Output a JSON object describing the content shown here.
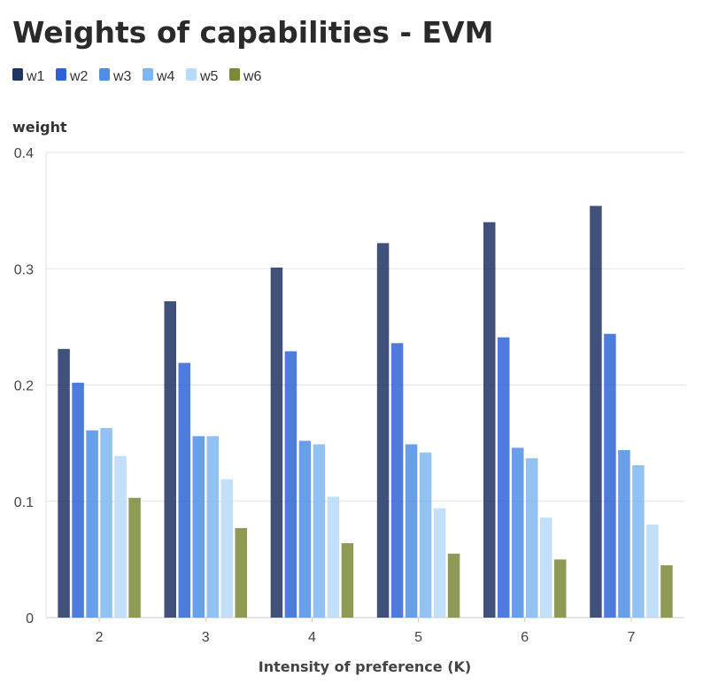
{
  "chart_data": {
    "type": "bar",
    "title": "Weights of capabilities - EVM",
    "xlabel": "Intensity of preference (K)",
    "ylabel": "weight",
    "ylim": [
      0,
      0.4
    ],
    "yticks": [
      0,
      0.1,
      0.2,
      0.3,
      0.4
    ],
    "ytick_labels": [
      "0",
      "0.1",
      "0.2",
      "0.3",
      "0.4"
    ],
    "grid": true,
    "legend_position": "top-left",
    "categories": [
      "2",
      "3",
      "4",
      "5",
      "6",
      "7"
    ],
    "series": [
      {
        "name": "w1",
        "color": "#1f3464",
        "values": [
          0.231,
          0.272,
          0.301,
          0.322,
          0.34,
          0.354
        ]
      },
      {
        "name": "w2",
        "color": "#2f64d8",
        "values": [
          0.202,
          0.219,
          0.229,
          0.236,
          0.241,
          0.244
        ]
      },
      {
        "name": "w3",
        "color": "#4d8ee8",
        "values": [
          0.161,
          0.156,
          0.152,
          0.149,
          0.146,
          0.144
        ]
      },
      {
        "name": "w4",
        "color": "#7fb6f2",
        "values": [
          0.163,
          0.156,
          0.149,
          0.142,
          0.137,
          0.131
        ]
      },
      {
        "name": "w5",
        "color": "#b9dbfa",
        "values": [
          0.139,
          0.119,
          0.104,
          0.094,
          0.086,
          0.08
        ]
      },
      {
        "name": "w6",
        "color": "#7a8a36",
        "values": [
          0.103,
          0.077,
          0.064,
          0.055,
          0.05,
          0.045
        ]
      }
    ]
  }
}
